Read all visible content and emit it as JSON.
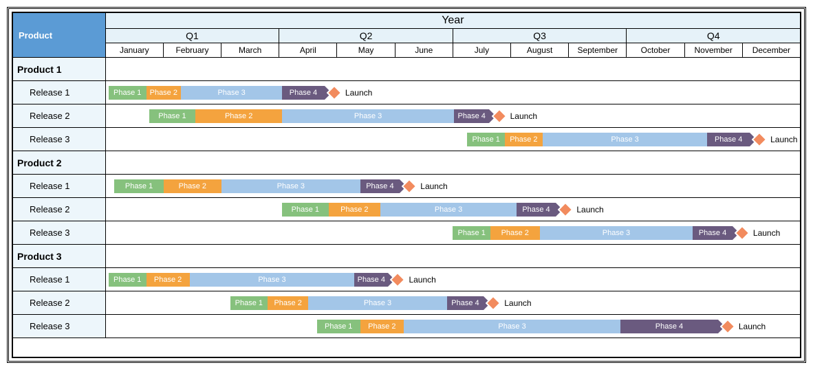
{
  "colors": {
    "phase1": "#86c17d",
    "phase2": "#f4a33e",
    "phase3": "#a3c6e8",
    "phase4": "#6a5a7f",
    "milestone_fill": "#f28b5e",
    "milestone_stroke": "#ffffff",
    "header_blue": "#5b9bd5",
    "header_light": "#e6f2f9",
    "row_side": "#edf6fb"
  },
  "header": {
    "product_label": "Product",
    "year_label": "Year",
    "quarters": [
      "Q1",
      "Q2",
      "Q3",
      "Q4"
    ],
    "months": [
      "January",
      "February",
      "March",
      "April",
      "May",
      "June",
      "July",
      "August",
      "September",
      "October",
      "November",
      "December"
    ],
    "label_col_months": 1.6,
    "timeline_months": 12
  },
  "phase_labels": {
    "p1": "Phase 1",
    "p2": "Phase 2",
    "p3": "Phase 3",
    "p4": "Phase 4",
    "launch": "Launch"
  },
  "products": [
    {
      "name": "Product 1",
      "releases": [
        {
          "name": "Release 1",
          "bars": [
            {
              "type": "bar",
              "label": "p1",
              "color": "phase1",
              "start": 0.05,
              "end": 0.7
            },
            {
              "type": "bar",
              "label": "p2",
              "color": "phase2",
              "start": 0.7,
              "end": 1.3
            },
            {
              "type": "bar",
              "label": "p3",
              "color": "phase3",
              "start": 1.3,
              "end": 3.05
            },
            {
              "type": "arrow",
              "label": "p4",
              "color": "phase4",
              "start": 3.05,
              "end": 3.9
            },
            {
              "type": "milestone",
              "label": "launch",
              "at": 3.95
            }
          ]
        },
        {
          "name": "Release 2",
          "bars": [
            {
              "type": "bar",
              "label": "p1",
              "color": "phase1",
              "start": 0.75,
              "end": 1.55
            },
            {
              "type": "bar",
              "label": "p2",
              "color": "phase2",
              "start": 1.55,
              "end": 3.05
            },
            {
              "type": "bar",
              "label": "p3",
              "color": "phase3",
              "start": 3.05,
              "end": 6.02
            },
            {
              "type": "arrow",
              "label": "p4",
              "color": "phase4",
              "start": 6.02,
              "end": 6.75
            },
            {
              "type": "milestone",
              "label": "launch",
              "at": 6.8
            }
          ]
        },
        {
          "name": "Release 3",
          "bars": [
            {
              "type": "bar",
              "label": "p1",
              "color": "phase1",
              "start": 6.25,
              "end": 6.9
            },
            {
              "type": "bar",
              "label": "p2",
              "color": "phase2",
              "start": 6.9,
              "end": 7.55
            },
            {
              "type": "bar",
              "label": "p3",
              "color": "phase3",
              "start": 7.55,
              "end": 10.4
            },
            {
              "type": "arrow",
              "label": "p4",
              "color": "phase4",
              "start": 10.4,
              "end": 11.25
            },
            {
              "type": "milestone",
              "label": "launch",
              "at": 11.3
            }
          ]
        }
      ]
    },
    {
      "name": "Product 2",
      "releases": [
        {
          "name": "Release 1",
          "bars": [
            {
              "type": "bar",
              "label": "p1",
              "color": "phase1",
              "start": 0.15,
              "end": 1.0
            },
            {
              "type": "bar",
              "label": "p2",
              "color": "phase2",
              "start": 1.0,
              "end": 2.0
            },
            {
              "type": "bar",
              "label": "p3",
              "color": "phase3",
              "start": 2.0,
              "end": 4.4
            },
            {
              "type": "arrow",
              "label": "p4",
              "color": "phase4",
              "start": 4.4,
              "end": 5.2
            },
            {
              "type": "milestone",
              "label": "launch",
              "at": 5.25
            }
          ]
        },
        {
          "name": "Release 2",
          "bars": [
            {
              "type": "bar",
              "label": "p1",
              "color": "phase1",
              "start": 3.05,
              "end": 3.85
            },
            {
              "type": "bar",
              "label": "p2",
              "color": "phase2",
              "start": 3.85,
              "end": 4.75
            },
            {
              "type": "bar",
              "label": "p3",
              "color": "phase3",
              "start": 4.75,
              "end": 7.1
            },
            {
              "type": "arrow",
              "label": "p4",
              "color": "phase4",
              "start": 7.1,
              "end": 7.9
            },
            {
              "type": "milestone",
              "label": "launch",
              "at": 7.95
            }
          ]
        },
        {
          "name": "Release 3",
          "bars": [
            {
              "type": "bar",
              "label": "p1",
              "color": "phase1",
              "start": 6.0,
              "end": 6.65
            },
            {
              "type": "bar",
              "label": "p2",
              "color": "phase2",
              "start": 6.65,
              "end": 7.5
            },
            {
              "type": "bar",
              "label": "p3",
              "color": "phase3",
              "start": 7.5,
              "end": 10.15
            },
            {
              "type": "arrow",
              "label": "p4",
              "color": "phase4",
              "start": 10.15,
              "end": 10.95
            },
            {
              "type": "milestone",
              "label": "launch",
              "at": 11.0
            }
          ]
        }
      ]
    },
    {
      "name": "Product 3",
      "releases": [
        {
          "name": "Release 1",
          "bars": [
            {
              "type": "bar",
              "label": "p1",
              "color": "phase1",
              "start": 0.05,
              "end": 0.7
            },
            {
              "type": "bar",
              "label": "p2",
              "color": "phase2",
              "start": 0.7,
              "end": 1.45
            },
            {
              "type": "bar",
              "label": "p3",
              "color": "phase3",
              "start": 1.45,
              "end": 4.3
            },
            {
              "type": "arrow",
              "label": "p4",
              "color": "phase4",
              "start": 4.3,
              "end": 5.0
            },
            {
              "type": "milestone",
              "label": "launch",
              "at": 5.05
            }
          ]
        },
        {
          "name": "Release 2",
          "bars": [
            {
              "type": "bar",
              "label": "p1",
              "color": "phase1",
              "start": 2.15,
              "end": 2.8
            },
            {
              "type": "bar",
              "label": "p2",
              "color": "phase2",
              "start": 2.8,
              "end": 3.5
            },
            {
              "type": "bar",
              "label": "p3",
              "color": "phase3",
              "start": 3.5,
              "end": 5.9
            },
            {
              "type": "arrow",
              "label": "p4",
              "color": "phase4",
              "start": 5.9,
              "end": 6.65
            },
            {
              "type": "milestone",
              "label": "launch",
              "at": 6.7
            }
          ]
        },
        {
          "name": "Release 3",
          "bars": [
            {
              "type": "bar",
              "label": "p1",
              "color": "phase1",
              "start": 3.65,
              "end": 4.4
            },
            {
              "type": "bar",
              "label": "p2",
              "color": "phase2",
              "start": 4.4,
              "end": 5.15
            },
            {
              "type": "bar",
              "label": "p3",
              "color": "phase3",
              "start": 5.15,
              "end": 8.9
            },
            {
              "type": "arrow",
              "label": "p4",
              "color": "phase4",
              "start": 8.9,
              "end": 10.7
            },
            {
              "type": "milestone",
              "label": "launch",
              "at": 10.75
            }
          ]
        }
      ]
    }
  ]
}
